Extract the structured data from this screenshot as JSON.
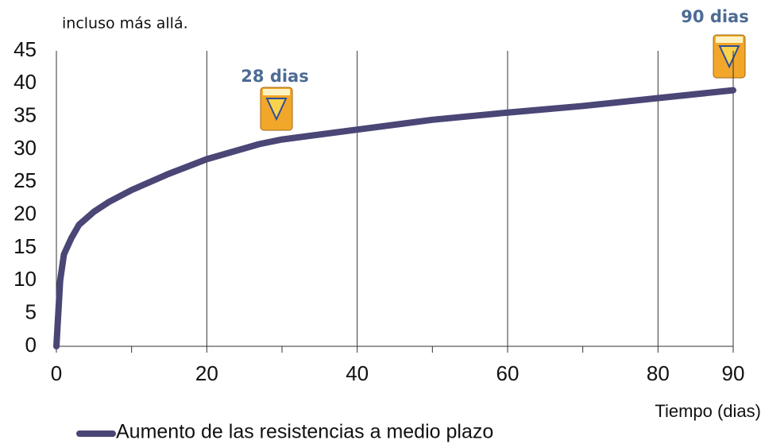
{
  "chart_data": {
    "type": "line",
    "subtitle": "incluso más allá.",
    "x_label": "Tiempo (dias)",
    "annotations": [
      "28 dias",
      "90 dias"
    ],
    "x": [
      0,
      0.5,
      1,
      2,
      3,
      5,
      7,
      10,
      15,
      20,
      27,
      30,
      40,
      50,
      60,
      70,
      80,
      90
    ],
    "series": [
      {
        "name": "Aumento de las resistencias a medio plazo",
        "color": "#4a4676",
        "values": [
          0,
          10,
          14,
          16.5,
          18.5,
          20.5,
          22,
          23.8,
          26.3,
          28.5,
          30.8,
          31.5,
          33,
          34.5,
          35.6,
          36.6,
          37.8,
          39
        ]
      }
    ],
    "xlim": [
      0,
      90
    ],
    "xticks": [
      0,
      20,
      40,
      60,
      80,
      90
    ],
    "xminorticks": [
      10,
      30,
      50,
      70
    ],
    "ylim": [
      0,
      45
    ],
    "yticks": [
      0,
      5,
      10,
      15,
      20,
      25,
      30,
      35,
      40,
      45
    ],
    "grid": true
  }
}
